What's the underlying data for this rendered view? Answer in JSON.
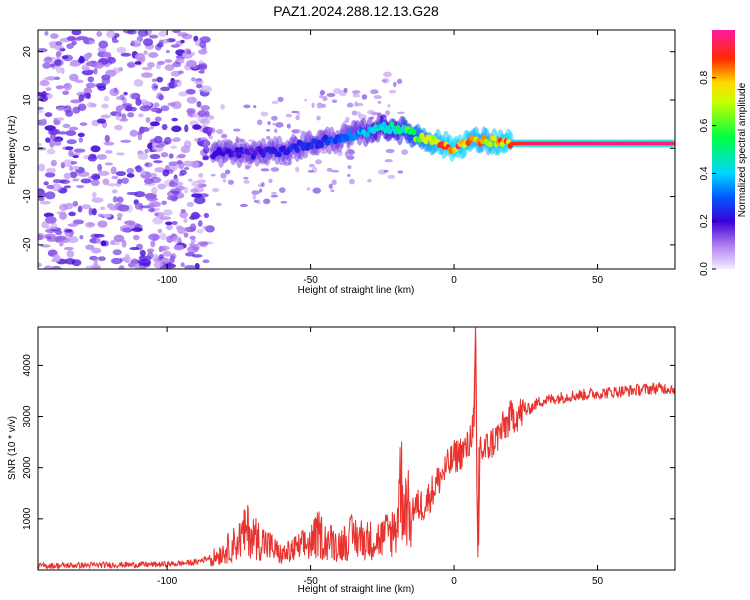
{
  "title": "PAZ1.2024.288.12.13.G28",
  "chart_data": [
    {
      "type": "heatmap",
      "title": "PAZ1.2024.288.12.13.G28",
      "xlabel": "Height of straight line (km)",
      "ylabel": "Frequency (Hz)",
      "xlim": [
        -145,
        77
      ],
      "ylim": [
        -25,
        24.5
      ],
      "xticks": [
        -100,
        -50,
        0,
        50
      ],
      "yticks": [
        -20,
        -10,
        0,
        10,
        20
      ],
      "colorbar": {
        "label": "Normalized spectral amplitude",
        "range": [
          0,
          1
        ],
        "ticks": [
          0.0,
          0.2,
          0.4,
          0.6,
          0.8
        ],
        "colormap": [
          "#f0e6ff",
          "#8a2be2",
          "#2a1ad8",
          "#00e5ff",
          "#00ff00",
          "#ffff00",
          "#ff0000",
          "#ff1aa0"
        ]
      },
      "ridge": {
        "description_points_x": [
          -80,
          -70,
          -60,
          -50,
          -40,
          -30,
          -25,
          -20,
          -15,
          -10,
          -5,
          0,
          5,
          10,
          20,
          30,
          50,
          77
        ],
        "frequency": [
          -1,
          -1,
          -0.5,
          1,
          2,
          3.5,
          4.5,
          4,
          3,
          2,
          1,
          0,
          1.5,
          1.5,
          1,
          1,
          1,
          1
        ],
        "amplitude": [
          0.2,
          0.2,
          0.25,
          0.25,
          0.3,
          0.4,
          0.45,
          0.5,
          0.6,
          0.75,
          0.85,
          0.9,
          0.85,
          0.8,
          0.9,
          0.95,
          0.97,
          0.97
        ]
      }
    },
    {
      "type": "line",
      "xlabel": "Height of straight line (km)",
      "ylabel": "SNR (10 * v/v)",
      "xlim": [
        -145,
        77
      ],
      "ylim": [
        0,
        4750
      ],
      "xticks": [
        -100,
        -50,
        0,
        50
      ],
      "yticks": [
        1000,
        2000,
        3000,
        4000
      ],
      "series": [
        {
          "color": "#e8322e",
          "x": [
            -145,
            -120,
            -100,
            -90,
            -85,
            -80,
            -75,
            -72,
            -70,
            -65,
            -60,
            -55,
            -50,
            -47,
            -45,
            -40,
            -35,
            -30,
            -25,
            -20,
            -19,
            -15,
            -10,
            -5,
            0,
            5,
            7,
            7.5,
            8,
            8.5,
            9,
            10,
            15,
            20,
            25,
            30,
            40,
            50,
            60,
            70,
            77
          ],
          "y": [
            80,
            100,
            110,
            150,
            250,
            450,
            700,
            950,
            800,
            600,
            350,
            500,
            650,
            850,
            700,
            600,
            800,
            700,
            750,
            1000,
            2100,
            1200,
            1300,
            1800,
            2200,
            2400,
            3000,
            4750,
            1500,
            200,
            2500,
            2300,
            2600,
            3000,
            3100,
            3300,
            3400,
            3450,
            3500,
            3550,
            3550
          ]
        }
      ]
    }
  ]
}
